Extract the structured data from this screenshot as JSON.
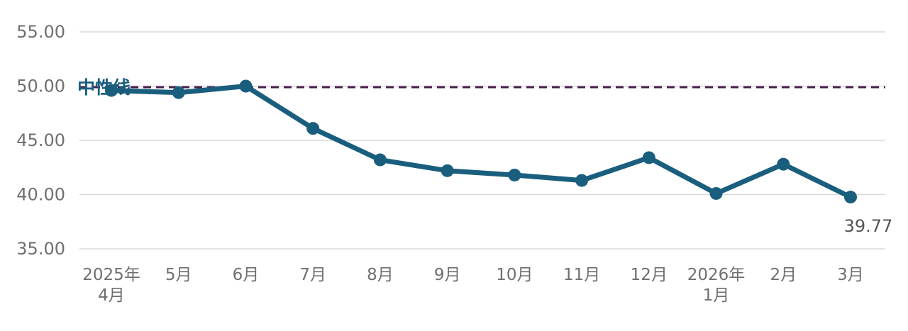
{
  "chart_data": {
    "type": "line",
    "title": "",
    "xlabel": "",
    "ylabel": "",
    "categories": [
      [
        "2025年",
        "4月"
      ],
      [
        "5月"
      ],
      [
        "6月"
      ],
      [
        "7月"
      ],
      [
        "8月"
      ],
      [
        "9月"
      ],
      [
        "10月"
      ],
      [
        "11月"
      ],
      [
        "12月"
      ],
      [
        "2026年",
        "1月"
      ],
      [
        "2月"
      ],
      [
        "3月"
      ]
    ],
    "series": [
      {
        "values": [
          49.6,
          49.4,
          50.0,
          46.1,
          43.2,
          42.2,
          41.8,
          41.3,
          43.4,
          40.1,
          42.8,
          39.77
        ],
        "color": "#1a5e7e"
      }
    ],
    "ylim": [
      35,
      55
    ],
    "yticks": [
      "35.00",
      "40.00",
      "45.00",
      "50.00",
      "55.00"
    ],
    "ytick_values": [
      35,
      40,
      45,
      50,
      55
    ],
    "grid": true,
    "reference_line": {
      "value": 49.9,
      "label": "中性线",
      "line_color": "#4b1f4f",
      "label_color": "#1a5e7e"
    },
    "data_labels": [
      {
        "index": 11,
        "text": "39.77"
      }
    ]
  }
}
